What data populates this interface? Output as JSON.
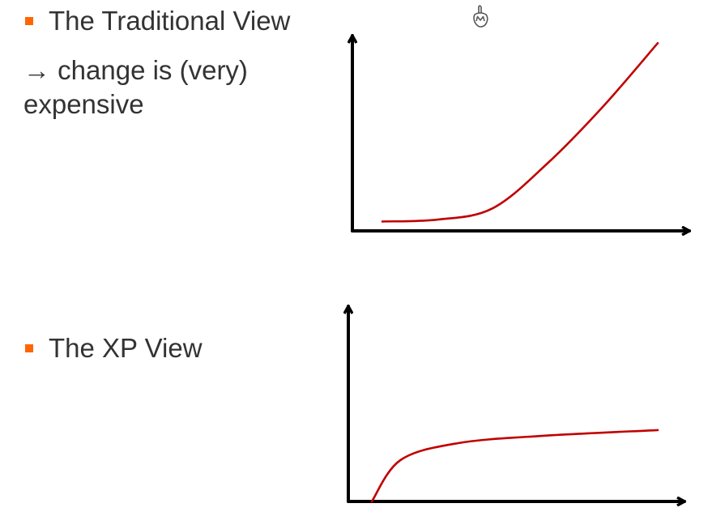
{
  "colors": {
    "bullet": "#ff6600",
    "text": "#333333",
    "axis": "#000000",
    "curve": "#c00000"
  },
  "traditional": {
    "heading": "The Traditional View",
    "note_arrow": "→",
    "note_line1": "change is (very)",
    "note_line2": "expensive"
  },
  "xp": {
    "heading": "The XP View"
  },
  "cursor_icon": "busy-hand-cursor-icon",
  "chart_data": [
    {
      "type": "line",
      "title": "",
      "xlabel": "",
      "ylabel": "",
      "series": [
        {
          "x": [
            0,
            20,
            40,
            60,
            80,
            100
          ],
          "values": [
            5,
            6,
            12,
            36,
            66,
            100
          ]
        }
      ],
      "xlim": [
        0,
        100
      ],
      "ylim": [
        0,
        110
      ],
      "grid": false
    },
    {
      "type": "line",
      "title": "",
      "xlabel": "",
      "ylabel": "",
      "series": [
        {
          "x": [
            0,
            10,
            30,
            60,
            100
          ],
          "values": [
            0,
            22,
            31,
            35,
            38
          ]
        }
      ],
      "xlim": [
        0,
        100
      ],
      "ylim": [
        0,
        110
      ],
      "grid": false
    }
  ]
}
